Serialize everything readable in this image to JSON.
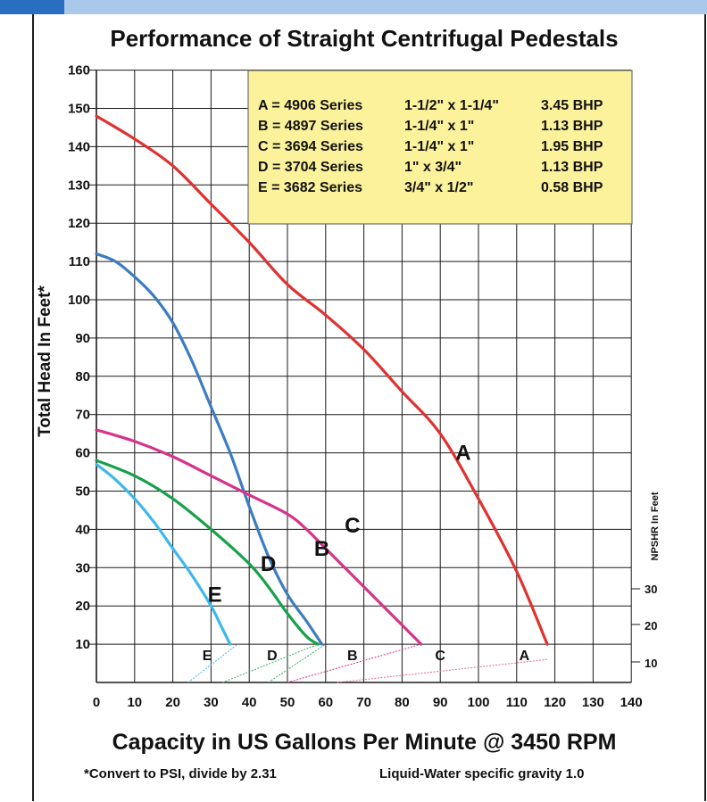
{
  "chart_data": {
    "type": "line",
    "title": "Performance of Straight Centrifugal Pedestals",
    "xlabel": "Capacity in US Gallons Per Minute @ 3450 RPM",
    "ylabel": "Total Head In Feet*",
    "y2label": "NPSHR In Feet",
    "xlim": [
      0,
      140
    ],
    "ylim": [
      0,
      160
    ],
    "x_ticks": [
      "0",
      "10",
      "20",
      "30",
      "40",
      "50",
      "60",
      "70",
      "80",
      "90",
      "100",
      "110",
      "120",
      "130",
      "140"
    ],
    "y_ticks": [
      "10",
      "20",
      "30",
      "40",
      "50",
      "60",
      "70",
      "80",
      "90",
      "100",
      "110",
      "120",
      "130",
      "140",
      "150",
      "160"
    ],
    "y2_ticks": [
      "10",
      "20",
      "30"
    ],
    "grid": true,
    "legend_position": "top-right",
    "legend": [
      {
        "key": "A",
        "series": "4906 Series",
        "size": "1-1/2\" x 1-1/4\"",
        "bhp": "3.45 BHP"
      },
      {
        "key": "B",
        "series": "4897 Series",
        "size": "1-1/4\"  x 1\"",
        "bhp": "1.13 BHP"
      },
      {
        "key": "C",
        "series": "3694 Series",
        "size": "1-1/4\" x 1\"",
        "bhp": "1.95 BHP"
      },
      {
        "key": "D",
        "series": "3704 Series",
        "size": "1\" x 3/4\"",
        "bhp": "1.13 BHP"
      },
      {
        "key": "E",
        "series": "3682 Series",
        "size": "3/4\" x 1/2\"",
        "bhp": "0.58 BHP"
      }
    ],
    "series": [
      {
        "name": "A",
        "color": "#e03131",
        "x": [
          0,
          10,
          20,
          30,
          40,
          50,
          60,
          70,
          80,
          90,
          100,
          110,
          118
        ],
        "y": [
          148,
          142,
          135,
          125,
          115,
          104,
          96,
          87,
          76,
          65,
          48,
          29,
          10
        ]
      },
      {
        "name": "B",
        "color": "#3d7cc1",
        "x": [
          0,
          5,
          10,
          15,
          20,
          25,
          30,
          35,
          40,
          45,
          50,
          55,
          59
        ],
        "y": [
          112,
          110,
          106,
          101,
          94,
          84,
          72,
          60,
          46,
          33,
          23,
          16,
          10
        ]
      },
      {
        "name": "C",
        "color": "#d6338a",
        "x": [
          0,
          10,
          20,
          30,
          40,
          50,
          55,
          60,
          65,
          70,
          75,
          80,
          85
        ],
        "y": [
          66,
          63,
          59,
          54,
          49,
          44,
          40,
          35,
          30,
          25,
          20,
          15,
          10
        ]
      },
      {
        "name": "D",
        "color": "#18a04a",
        "x": [
          0,
          10,
          20,
          30,
          40,
          45,
          50,
          55,
          58
        ],
        "y": [
          58,
          54,
          48,
          40,
          31,
          25,
          18,
          12,
          10
        ]
      },
      {
        "name": "E",
        "color": "#3db8ea",
        "x": [
          0,
          5,
          10,
          15,
          20,
          25,
          30,
          33,
          35
        ],
        "y": [
          57,
          53,
          48,
          42,
          35,
          28,
          20,
          14,
          10
        ]
      }
    ],
    "npshr_series": [
      {
        "name": "A",
        "color": "#e26b8e",
        "x": [
          63,
          118
        ],
        "y": [
          0,
          6
        ]
      },
      {
        "name": "B",
        "color": "#3aaa6a",
        "x": [
          45,
          60
        ],
        "y": [
          0,
          10
        ]
      },
      {
        "name": "C",
        "color": "#d6338a",
        "x": [
          50,
          85
        ],
        "y": [
          0,
          10
        ]
      },
      {
        "name": "D",
        "color": "#3aaa6a",
        "x": [
          33,
          58
        ],
        "y": [
          0,
          10
        ]
      },
      {
        "name": "E",
        "color": "#3db8ea",
        "x": [
          24,
          37
        ],
        "y": [
          0,
          10
        ]
      }
    ],
    "curve_labels": [
      {
        "text": "A",
        "x": 96,
        "y": 60,
        "size": "large"
      },
      {
        "text": "B",
        "x": 59,
        "y": 35,
        "size": "large"
      },
      {
        "text": "C",
        "x": 67,
        "y": 41,
        "size": "large"
      },
      {
        "text": "D",
        "x": 45,
        "y": 31,
        "size": "large"
      },
      {
        "text": "E",
        "x": 31,
        "y": 23,
        "size": "large"
      },
      {
        "text": "E",
        "x": 29,
        "y": 7,
        "size": "small"
      },
      {
        "text": "D",
        "x": 46,
        "y": 7,
        "size": "small"
      },
      {
        "text": "B",
        "x": 67,
        "y": 7,
        "size": "small"
      },
      {
        "text": "C",
        "x": 90,
        "y": 7,
        "size": "small"
      },
      {
        "text": "A",
        "x": 112,
        "y": 7,
        "size": "small"
      }
    ],
    "footnote_left": "*Convert to PSI, divide by 2.31",
    "footnote_right": "Liquid-Water specific gravity 1.0"
  },
  "colors": {
    "legend_bg": "#fcf29c",
    "grid": "#1a1a1a",
    "topbar_dark": "#2a6ec1",
    "topbar_light": "#a9c8ea"
  }
}
